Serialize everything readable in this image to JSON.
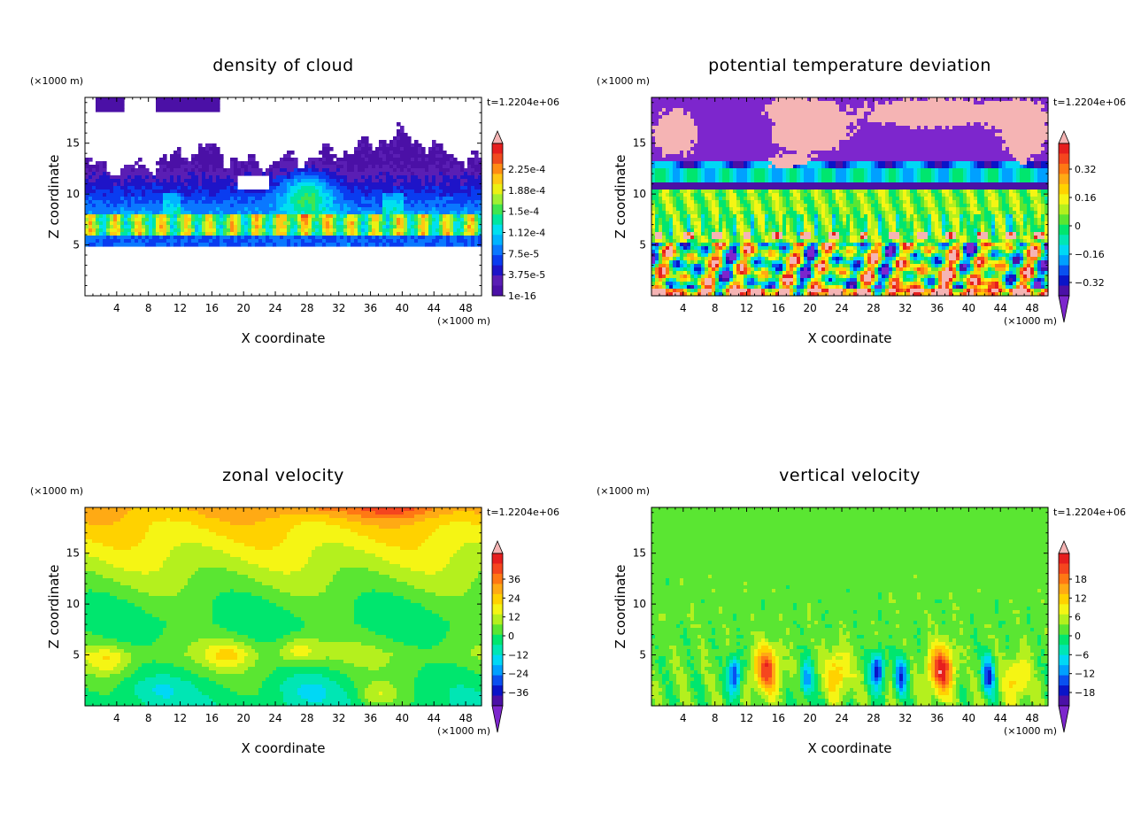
{
  "figure": {
    "colors": {
      "rainbow": [
        "#7d26cd",
        "#4b10a6",
        "#0a14c8",
        "#0a50f0",
        "#00a0ff",
        "#00d8f5",
        "#00e6b4",
        "#00e66e",
        "#5ae632",
        "#b4f01e",
        "#f5f514",
        "#ffd200",
        "#ffaa14",
        "#ff7814",
        "#f5461e",
        "#e61e1e",
        "#f5b4b4"
      ],
      "cloud": [
        "#4b10a6",
        "#5a1eb4",
        "#1e14c8",
        "#0a3cf0",
        "#0a78ff",
        "#00b4ff",
        "#00e0f0",
        "#00e6a0",
        "#40e650",
        "#a0f032",
        "#ecf014",
        "#ffc814",
        "#ff8c14",
        "#f04b1e",
        "#e61e1e",
        "#f5b4b4"
      ]
    },
    "panels": [
      {
        "title": "density of cloud",
        "time_label": "t=1.2204e+06",
        "xlabel": "X coordinate",
        "ylabel": "Z coordinate",
        "x_unit": "(×1000 m)",
        "y_unit": "(×1000 m)",
        "x_ticks": [
          "4",
          "8",
          "12",
          "16",
          "20",
          "24",
          "28",
          "32",
          "36",
          "40",
          "44",
          "48"
        ],
        "y_ticks": [
          "5",
          "10",
          "15"
        ],
        "colorbar_labels": [
          "2.25e-4",
          "1.88e-4",
          "1.5e-4",
          "1.12e-4",
          "7.5e-5",
          "3.75e-5",
          "1e-16"
        ],
        "colorbar_low_arrow": false
      },
      {
        "title": "potential temperature deviation",
        "time_label": "t=1.2204e+06",
        "xlabel": "X coordinate",
        "ylabel": "Z coordinate",
        "x_unit": "(×1000 m)",
        "y_unit": "(×1000 m)",
        "x_ticks": [
          "4",
          "8",
          "12",
          "16",
          "20",
          "24",
          "28",
          "32",
          "36",
          "40",
          "44",
          "48"
        ],
        "y_ticks": [
          "5",
          "10",
          "15"
        ],
        "colorbar_labels": [
          "0.32",
          "0.16",
          "0",
          "−0.16",
          "−0.32"
        ],
        "colorbar_low_arrow": true
      },
      {
        "title": "zonal velocity",
        "time_label": "t=1.2204e+06",
        "xlabel": "X coordinate",
        "ylabel": "Z coordinate",
        "x_unit": "(×1000 m)",
        "y_unit": "(×1000 m)",
        "x_ticks": [
          "4",
          "8",
          "12",
          "16",
          "20",
          "24",
          "28",
          "32",
          "36",
          "40",
          "44",
          "48"
        ],
        "y_ticks": [
          "5",
          "10",
          "15"
        ],
        "colorbar_labels": [
          "36",
          "24",
          "12",
          "0",
          "−12",
          "−24",
          "−36"
        ],
        "colorbar_low_arrow": true
      },
      {
        "title": "vertical velocity",
        "time_label": "t=1.2204e+06",
        "xlabel": "X coordinate",
        "ylabel": "Z coordinate",
        "x_unit": "(×1000 m)",
        "y_unit": "(×1000 m)",
        "x_ticks": [
          "4",
          "8",
          "12",
          "16",
          "20",
          "24",
          "28",
          "32",
          "36",
          "40",
          "44",
          "48"
        ],
        "y_ticks": [
          "5",
          "10",
          "15"
        ],
        "colorbar_labels": [
          "18",
          "12",
          "6",
          "0",
          "−6",
          "−12",
          "−18"
        ],
        "colorbar_low_arrow": true
      }
    ]
  },
  "chart_data": [
    {
      "type": "heatmap",
      "title": "density of cloud",
      "xlabel": "X coordinate",
      "ylabel": "Z coordinate",
      "x_unit": "(×1000 m)",
      "y_unit": "(×1000 m)",
      "xlim": [
        0,
        50
      ],
      "ylim": [
        0,
        19.5
      ],
      "x_ticks": [
        4,
        8,
        12,
        16,
        20,
        24,
        28,
        32,
        36,
        40,
        44,
        48
      ],
      "y_ticks": [
        5,
        10,
        15
      ],
      "colorbar": {
        "min": 1e-16,
        "max": 0.000225,
        "ticks": [
          0.000225,
          0.000188,
          0.00015,
          0.000112,
          7.5e-05,
          3.75e-05,
          1e-16
        ]
      },
      "cloud_base_z": 5,
      "cloud_top_z": [
        [
          0,
          13.0
        ],
        [
          5,
          12.6
        ],
        [
          10,
          13.4
        ],
        [
          15,
          14.8
        ],
        [
          20,
          13.2
        ],
        [
          25,
          13.4
        ],
        [
          30,
          14.0
        ],
        [
          35,
          14.8
        ],
        [
          40,
          16.2
        ],
        [
          45,
          14.4
        ],
        [
          50,
          13.2
        ]
      ],
      "dense_layer_z": [
        5.8,
        8.0
      ],
      "anvil_z": [
        18.2,
        19.5
      ]
    },
    {
      "type": "heatmap",
      "title": "potential temperature deviation",
      "xlabel": "X coordinate",
      "ylabel": "Z coordinate",
      "x_unit": "(×1000 m)",
      "y_unit": "(×1000 m)",
      "xlim": [
        0,
        50
      ],
      "ylim": [
        0,
        19.5
      ],
      "x_ticks": [
        4,
        8,
        12,
        16,
        20,
        24,
        28,
        32,
        36,
        40,
        44,
        48
      ],
      "y_ticks": [
        5,
        10,
        15
      ],
      "colorbar": {
        "min": -0.4,
        "max": 0.4,
        "ticks": [
          0.32,
          0.16,
          0,
          -0.16,
          -0.32
        ]
      },
      "bands": [
        {
          "z": [
            0,
            5
          ],
          "pattern": "turbulent eddies, range -0.4 to 0.4"
        },
        {
          "z": [
            5,
            10.5
          ],
          "value": 0.02
        },
        {
          "z": [
            10.5,
            12.5
          ],
          "value": -0.2
        },
        {
          "z": [
            12.5,
            19.5
          ],
          "value": -0.38,
          "patches_value": 0.4
        }
      ]
    },
    {
      "type": "heatmap",
      "title": "zonal velocity",
      "xlabel": "X coordinate",
      "ylabel": "Z coordinate",
      "x_unit": "(×1000 m)",
      "y_unit": "(×1000 m)",
      "xlim": [
        0,
        50
      ],
      "ylim": [
        0,
        19.5
      ],
      "x_ticks": [
        4,
        8,
        12,
        16,
        20,
        24,
        28,
        32,
        36,
        40,
        44,
        48
      ],
      "y_ticks": [
        5,
        10,
        15
      ],
      "colorbar": {
        "min": -40,
        "max": 40,
        "ticks": [
          36,
          24,
          12,
          0,
          -12,
          -24,
          -36
        ]
      },
      "profile": [
        [
          0,
          -6
        ],
        [
          2,
          -4
        ],
        [
          5,
          2
        ],
        [
          8,
          -4
        ],
        [
          10,
          -2
        ],
        [
          12,
          2
        ],
        [
          14,
          6
        ],
        [
          16,
          10
        ],
        [
          18,
          14
        ],
        [
          19.5,
          18
        ]
      ],
      "positive_cores": [
        [
          3,
          4.5
        ],
        [
          18,
          5
        ],
        [
          27,
          5.5
        ],
        [
          37,
          1
        ]
      ]
    },
    {
      "type": "heatmap",
      "title": "vertical velocity",
      "xlabel": "X coordinate",
      "ylabel": "Z coordinate",
      "x_unit": "(×1000 m)",
      "y_unit": "(×1000 m)",
      "xlim": [
        0,
        50
      ],
      "ylim": [
        0,
        19.5
      ],
      "x_ticks": [
        4,
        8,
        12,
        16,
        20,
        24,
        28,
        32,
        36,
        40,
        44,
        48
      ],
      "y_ticks": [
        5,
        10,
        15
      ],
      "colorbar": {
        "min": -20,
        "max": 20,
        "ticks": [
          18,
          12,
          6,
          0,
          -6,
          -12,
          -18
        ]
      },
      "updraft_cores": [
        [
          14.5,
          3.5,
          14
        ],
        [
          23.5,
          3.2,
          8
        ],
        [
          36.5,
          3.5,
          16
        ],
        [
          46,
          2.5,
          7
        ]
      ],
      "downdraft_cores": [
        [
          10.5,
          3,
          -14
        ],
        [
          19.5,
          2.5,
          -10
        ],
        [
          28.5,
          3.5,
          -15
        ],
        [
          31.5,
          3,
          -12
        ],
        [
          42.5,
          3,
          -13
        ]
      ]
    }
  ]
}
